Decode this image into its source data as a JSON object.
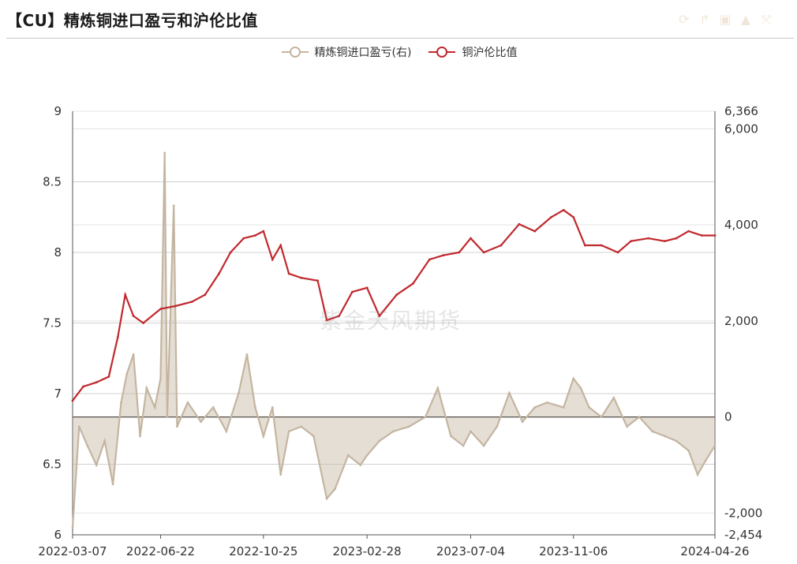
{
  "header": {
    "title": "【CU】精炼铜进口盈亏和沪伦比值",
    "tools": [
      {
        "icon": "refresh-icon",
        "glyph": "⟳"
      },
      {
        "icon": "share-icon",
        "glyph": "↱"
      },
      {
        "icon": "save-image-icon",
        "glyph": "▣"
      },
      {
        "icon": "bell-icon",
        "glyph": "▲"
      },
      {
        "icon": "fullscreen-icon",
        "glyph": "⤧"
      }
    ]
  },
  "watermark": "紫金天风期货",
  "legend": [
    {
      "label": "精炼铜进口盈亏(右)",
      "color": "#c4b5a0"
    },
    {
      "label": "铜沪伦比值",
      "color": "#c0282d"
    }
  ],
  "chart_data": {
    "type": "line",
    "x_tick_labels": [
      "2022-03-07",
      "2022-06-22",
      "2022-10-25",
      "2023-02-28",
      "2023-07-04",
      "2023-11-06",
      "2024-04-26"
    ],
    "x_range": [
      "2022-03-07",
      "2024-04-26"
    ],
    "left_axis": {
      "ticks": [
        "9",
        "8.5",
        "8",
        "7.5",
        "7",
        "6.5",
        "6"
      ],
      "range": [
        6,
        9
      ]
    },
    "right_axis": {
      "ticks": [
        "6,366",
        "6,000",
        "4,000",
        "2,000",
        "0",
        "-2,000",
        "-2,454"
      ],
      "range": [
        -2454,
        6366
      ]
    },
    "series": [
      {
        "name": "铜沪伦比值",
        "axis": "left",
        "color": "#c0282d",
        "type": "line",
        "points": [
          [
            "2022-03-07",
            6.95
          ],
          [
            "2022-03-20",
            7.05
          ],
          [
            "2022-04-05",
            7.08
          ],
          [
            "2022-04-20",
            7.12
          ],
          [
            "2022-05-01",
            7.4
          ],
          [
            "2022-05-10",
            7.7
          ],
          [
            "2022-05-20",
            7.55
          ],
          [
            "2022-06-01",
            7.5
          ],
          [
            "2022-06-22",
            7.6
          ],
          [
            "2022-07-10",
            7.62
          ],
          [
            "2022-07-30",
            7.65
          ],
          [
            "2022-08-15",
            7.7
          ],
          [
            "2022-09-01",
            7.85
          ],
          [
            "2022-09-15",
            8.0
          ],
          [
            "2022-10-01",
            8.1
          ],
          [
            "2022-10-15",
            8.12
          ],
          [
            "2022-10-25",
            8.15
          ],
          [
            "2022-11-05",
            7.95
          ],
          [
            "2022-11-15",
            8.05
          ],
          [
            "2022-11-25",
            7.85
          ],
          [
            "2022-12-10",
            7.82
          ],
          [
            "2022-12-30",
            7.8
          ],
          [
            "2023-01-10",
            7.52
          ],
          [
            "2023-01-25",
            7.55
          ],
          [
            "2023-02-10",
            7.72
          ],
          [
            "2023-02-28",
            7.75
          ],
          [
            "2023-03-15",
            7.55
          ],
          [
            "2023-04-05",
            7.7
          ],
          [
            "2023-04-25",
            7.78
          ],
          [
            "2023-05-15",
            7.95
          ],
          [
            "2023-06-01",
            7.98
          ],
          [
            "2023-06-20",
            8.0
          ],
          [
            "2023-07-04",
            8.1
          ],
          [
            "2023-07-20",
            8.0
          ],
          [
            "2023-08-10",
            8.05
          ],
          [
            "2023-09-01",
            8.2
          ],
          [
            "2023-09-20",
            8.15
          ],
          [
            "2023-10-10",
            8.25
          ],
          [
            "2023-10-25",
            8.3
          ],
          [
            "2023-11-06",
            8.25
          ],
          [
            "2023-11-20",
            8.05
          ],
          [
            "2023-12-10",
            8.05
          ],
          [
            "2023-12-30",
            8.0
          ],
          [
            "2024-01-15",
            8.08
          ],
          [
            "2024-02-05",
            8.1
          ],
          [
            "2024-02-25",
            8.08
          ],
          [
            "2024-03-10",
            8.1
          ],
          [
            "2024-03-25",
            8.15
          ],
          [
            "2024-04-10",
            8.12
          ],
          [
            "2024-04-26",
            8.12
          ]
        ]
      },
      {
        "name": "精炼铜进口盈亏(右)",
        "axis": "right",
        "color": "#c4b5a0",
        "type": "area",
        "points": [
          [
            "2022-03-07",
            -2300
          ],
          [
            "2022-03-15",
            -200
          ],
          [
            "2022-03-25",
            -600
          ],
          [
            "2022-04-05",
            -1000
          ],
          [
            "2022-04-15",
            -500
          ],
          [
            "2022-04-25",
            -1400
          ],
          [
            "2022-05-05",
            300
          ],
          [
            "2022-05-12",
            900
          ],
          [
            "2022-05-20",
            1300
          ],
          [
            "2022-05-28",
            -400
          ],
          [
            "2022-06-05",
            600
          ],
          [
            "2022-06-15",
            200
          ],
          [
            "2022-06-22",
            800
          ],
          [
            "2022-06-27",
            5500
          ],
          [
            "2022-06-30",
            0
          ],
          [
            "2022-07-08",
            4400
          ],
          [
            "2022-07-12",
            -200
          ],
          [
            "2022-07-25",
            300
          ],
          [
            "2022-08-10",
            -100
          ],
          [
            "2022-08-25",
            200
          ],
          [
            "2022-09-10",
            -300
          ],
          [
            "2022-09-25",
            500
          ],
          [
            "2022-10-05",
            1300
          ],
          [
            "2022-10-15",
            200
          ],
          [
            "2022-10-25",
            -400
          ],
          [
            "2022-11-05",
            200
          ],
          [
            "2022-11-15",
            -1200
          ],
          [
            "2022-11-25",
            -300
          ],
          [
            "2022-12-10",
            -200
          ],
          [
            "2022-12-25",
            -400
          ],
          [
            "2023-01-10",
            -1700
          ],
          [
            "2023-01-20",
            -1500
          ],
          [
            "2023-02-05",
            -800
          ],
          [
            "2023-02-20",
            -1000
          ],
          [
            "2023-02-28",
            -800
          ],
          [
            "2023-03-15",
            -500
          ],
          [
            "2023-04-01",
            -300
          ],
          [
            "2023-04-20",
            -200
          ],
          [
            "2023-05-10",
            0
          ],
          [
            "2023-05-25",
            600
          ],
          [
            "2023-06-10",
            -400
          ],
          [
            "2023-06-25",
            -600
          ],
          [
            "2023-07-04",
            -300
          ],
          [
            "2023-07-20",
            -600
          ],
          [
            "2023-08-05",
            -200
          ],
          [
            "2023-08-20",
            500
          ],
          [
            "2023-09-05",
            -100
          ],
          [
            "2023-09-20",
            200
          ],
          [
            "2023-10-05",
            300
          ],
          [
            "2023-10-25",
            200
          ],
          [
            "2023-11-06",
            800
          ],
          [
            "2023-11-15",
            600
          ],
          [
            "2023-11-25",
            200
          ],
          [
            "2023-12-10",
            0
          ],
          [
            "2023-12-25",
            400
          ],
          [
            "2024-01-10",
            -200
          ],
          [
            "2024-01-25",
            0
          ],
          [
            "2024-02-10",
            -300
          ],
          [
            "2024-02-25",
            -400
          ],
          [
            "2024-03-10",
            -500
          ],
          [
            "2024-03-25",
            -700
          ],
          [
            "2024-04-05",
            -1200
          ],
          [
            "2024-04-15",
            -900
          ],
          [
            "2024-04-26",
            -600
          ]
        ]
      }
    ],
    "grid": true,
    "legend_position": "top-center"
  }
}
